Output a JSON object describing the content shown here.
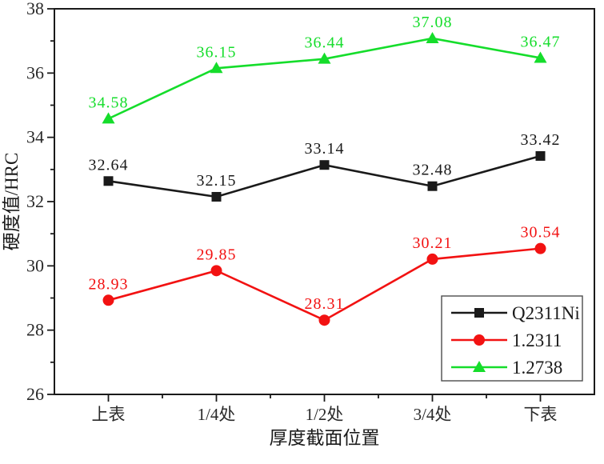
{
  "page": {
    "background_color": "#ffffff"
  },
  "chart_data": {
    "type": "line",
    "title": "",
    "xlabel": "厚度截面位置",
    "ylabel": "硬度值/HRC",
    "categories": [
      "上表",
      "1/4处",
      "1/2处",
      "3/4处",
      "下表"
    ],
    "ylim": [
      26,
      38
    ],
    "y_major_step": 2,
    "y_minor_step": 1,
    "y_ticks": [
      26,
      28,
      30,
      32,
      34,
      36,
      38
    ],
    "grid": false,
    "legend_position": "inside-bottom-right",
    "frame_color": "#1a1a1a",
    "tick_label_color": "#2a2a2a",
    "series": [
      {
        "name": "Q2311Ni",
        "color": "#1a1a1a",
        "marker": "square",
        "values": [
          32.64,
          32.15,
          33.14,
          32.48,
          33.42
        ],
        "labels": [
          "32.64",
          "32.15",
          "33.14",
          "32.48",
          "33.42"
        ]
      },
      {
        "name": "1.2311",
        "color": "#f21212",
        "marker": "circle",
        "values": [
          28.93,
          29.85,
          28.31,
          30.21,
          30.54
        ],
        "labels": [
          "28.93",
          "29.85",
          "28.31",
          "30.21",
          "30.54"
        ]
      },
      {
        "name": "1.2738",
        "color": "#15dd2b",
        "marker": "triangle",
        "values": [
          34.58,
          36.15,
          36.44,
          37.08,
          36.47
        ],
        "labels": [
          "34.58",
          "36.15",
          "36.44",
          "37.08",
          "36.47"
        ]
      }
    ]
  }
}
